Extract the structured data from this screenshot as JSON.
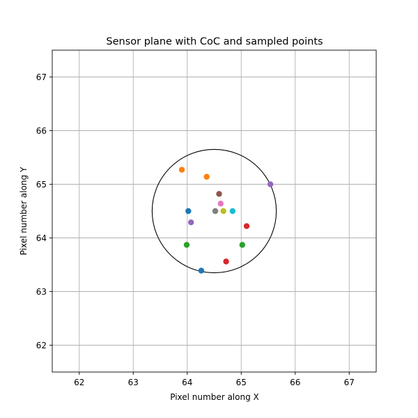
{
  "chart_data": {
    "type": "scatter",
    "title": "Sensor plane with CoC and sampled points",
    "xlabel": "Pixel number along X",
    "ylabel": "Pixel number along Y",
    "xlim": [
      61.5,
      67.5
    ],
    "ylim": [
      61.5,
      67.5
    ],
    "xticks": [
      "62",
      "63",
      "64",
      "65",
      "66",
      "67"
    ],
    "yticks": [
      "62",
      "63",
      "64",
      "65",
      "66",
      "67"
    ],
    "grid": true,
    "grid_color": "#b0b0b0",
    "circle": {
      "center": [
        64.5,
        64.5
      ],
      "radius": 1.15,
      "color": "#000000"
    },
    "series": [
      {
        "color": "#1f77b4",
        "points": [
          [
            64.02,
            64.5
          ],
          [
            64.26,
            63.39
          ]
        ]
      },
      {
        "color": "#ff7f0e",
        "points": [
          [
            63.9,
            65.27
          ],
          [
            64.36,
            65.14
          ]
        ]
      },
      {
        "color": "#2ca02c",
        "points": [
          [
            63.99,
            63.87
          ],
          [
            65.02,
            63.87
          ]
        ]
      },
      {
        "color": "#d62728",
        "points": [
          [
            64.72,
            63.56
          ],
          [
            65.1,
            64.22
          ]
        ]
      },
      {
        "color": "#9467bd",
        "points": [
          [
            64.07,
            64.29
          ],
          [
            65.54,
            65.0
          ]
        ]
      },
      {
        "color": "#8c564b",
        "points": [
          [
            64.59,
            64.82
          ]
        ]
      },
      {
        "color": "#e377c2",
        "points": [
          [
            64.62,
            64.64
          ]
        ]
      },
      {
        "color": "#7f7f7f",
        "points": [
          [
            64.52,
            64.5
          ]
        ]
      },
      {
        "color": "#bcbd22",
        "points": [
          [
            64.67,
            64.5
          ]
        ]
      },
      {
        "color": "#17becf",
        "points": [
          [
            64.84,
            64.5
          ]
        ]
      }
    ]
  }
}
